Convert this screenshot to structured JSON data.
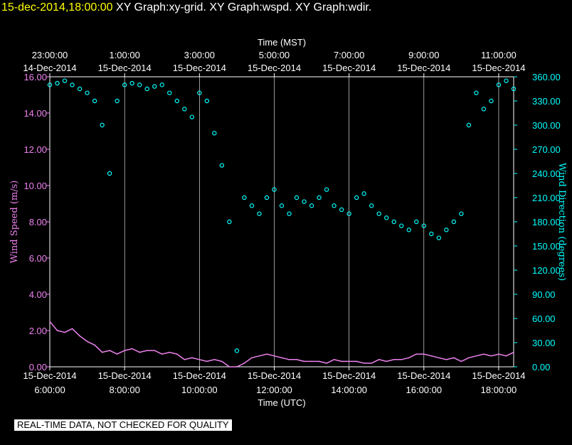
{
  "header": {
    "timestamp": "15-dec-2014,18:00:00",
    "graphs": "XY Graph:xy-grid.  XY Graph:wspd.  XY Graph:wdir."
  },
  "notice": "REAL-TIME DATA, NOT CHECKED FOR QUALITY",
  "colors": {
    "background": "#000000",
    "frame": "#ffffff",
    "grid": "#ffffff",
    "wspd": "#ee82ee",
    "wdir": "#00ffff",
    "header_ts": "#ffff00"
  },
  "chart_data": {
    "type": "scatter",
    "top_axis_title": "Time (MST)",
    "bottom_axis_title": "Time (UTC)",
    "left_axis_title": "Wind Speed (m/s)",
    "right_axis_title": "Wind Direction (degrees)",
    "x_range_utc_hours": [
      6,
      18.4
    ],
    "left_ylim": [
      0,
      16
    ],
    "right_ylim": [
      0,
      360
    ],
    "left_ticks": [
      "0.00",
      "2.00",
      "4.00",
      "6.00",
      "8.00",
      "10.00",
      "12.00",
      "14.00",
      "16.00"
    ],
    "right_ticks": [
      "0.00",
      "30.00",
      "60.00",
      "90.00",
      "120.00",
      "150.00",
      "180.00",
      "210.00",
      "240.00",
      "270.00",
      "300.00",
      "330.00",
      "360.00"
    ],
    "bottom_ticks": [
      {
        "utc_hour": 6,
        "date": "15-Dec-2014",
        "time": "6:00:00"
      },
      {
        "utc_hour": 8,
        "date": "15-Dec-2014",
        "time": "8:00:00"
      },
      {
        "utc_hour": 10,
        "date": "15-Dec-2014",
        "time": "10:00:00"
      },
      {
        "utc_hour": 12,
        "date": "15-Dec-2014",
        "time": "12:00:00"
      },
      {
        "utc_hour": 14,
        "date": "15-Dec-2014",
        "time": "14:00:00"
      },
      {
        "utc_hour": 16,
        "date": "15-Dec-2014",
        "time": "16:00:00"
      },
      {
        "utc_hour": 18,
        "date": "15-Dec-2014",
        "time": "18:00:00"
      }
    ],
    "top_ticks": [
      {
        "utc_hour": 6,
        "date": "14-Dec-2014",
        "time": "23:00:00"
      },
      {
        "utc_hour": 8,
        "date": "15-Dec-2014",
        "time": "1:00:00"
      },
      {
        "utc_hour": 10,
        "date": "15-Dec-2014",
        "time": "3:00:00"
      },
      {
        "utc_hour": 12,
        "date": "15-Dec-2014",
        "time": "5:00:00"
      },
      {
        "utc_hour": 14,
        "date": "15-Dec-2014",
        "time": "7:00:00"
      },
      {
        "utc_hour": 16,
        "date": "15-Dec-2014",
        "time": "9:00:00"
      },
      {
        "utc_hour": 18,
        "date": "15-Dec-2014",
        "time": "11:00:00"
      }
    ],
    "grid_hours": [
      8,
      10,
      12,
      14,
      16,
      18
    ],
    "series": [
      {
        "key": "wspd",
        "style": "line",
        "units": "m/s",
        "x": [
          6.0,
          6.2,
          6.4,
          6.6,
          6.8,
          7.0,
          7.2,
          7.4,
          7.6,
          7.8,
          8.0,
          8.2,
          8.4,
          8.6,
          8.8,
          9.0,
          9.2,
          9.4,
          9.6,
          9.8,
          10.0,
          10.2,
          10.4,
          10.6,
          10.8,
          11.0,
          11.2,
          11.4,
          11.6,
          11.8,
          12.0,
          12.2,
          12.4,
          12.6,
          12.8,
          13.0,
          13.2,
          13.4,
          13.6,
          13.8,
          14.0,
          14.2,
          14.4,
          14.6,
          14.8,
          15.0,
          15.2,
          15.4,
          15.6,
          15.8,
          16.0,
          16.2,
          16.4,
          16.6,
          16.8,
          17.0,
          17.2,
          17.4,
          17.6,
          17.8,
          18.0,
          18.2,
          18.4
        ],
        "y": [
          2.5,
          2.0,
          1.9,
          2.1,
          1.7,
          1.4,
          1.2,
          0.8,
          0.9,
          0.7,
          0.9,
          1.0,
          0.8,
          0.9,
          0.9,
          0.7,
          0.8,
          0.7,
          0.4,
          0.5,
          0.4,
          0.3,
          0.4,
          0.3,
          0.0,
          0.0,
          0.2,
          0.5,
          0.6,
          0.7,
          0.6,
          0.5,
          0.4,
          0.4,
          0.3,
          0.3,
          0.3,
          0.2,
          0.4,
          0.3,
          0.3,
          0.3,
          0.2,
          0.2,
          0.4,
          0.3,
          0.4,
          0.4,
          0.5,
          0.7,
          0.7,
          0.6,
          0.5,
          0.4,
          0.5,
          0.3,
          0.5,
          0.6,
          0.7,
          0.6,
          0.7,
          0.6,
          0.8
        ]
      },
      {
        "key": "wdir",
        "style": "circles",
        "units": "degrees",
        "x": [
          6.0,
          6.2,
          6.4,
          6.6,
          6.8,
          7.0,
          7.2,
          7.4,
          7.6,
          7.8,
          8.0,
          8.2,
          8.4,
          8.6,
          8.8,
          9.0,
          9.2,
          9.4,
          9.6,
          9.8,
          10.0,
          10.2,
          10.4,
          10.6,
          10.8,
          11.0,
          11.2,
          11.4,
          11.6,
          11.8,
          12.0,
          12.2,
          12.4,
          12.6,
          12.8,
          13.0,
          13.2,
          13.4,
          13.6,
          13.8,
          14.0,
          14.2,
          14.4,
          14.6,
          14.8,
          15.0,
          15.2,
          15.4,
          15.6,
          15.8,
          16.0,
          16.2,
          16.4,
          16.6,
          16.8,
          17.0,
          17.2,
          17.4,
          17.6,
          17.8,
          18.0,
          18.2,
          18.4
        ],
        "y": [
          350,
          352,
          355,
          350,
          345,
          340,
          330,
          300,
          240,
          330,
          350,
          352,
          350,
          345,
          348,
          350,
          340,
          330,
          320,
          310,
          340,
          330,
          290,
          250,
          180,
          20,
          210,
          200,
          190,
          210,
          220,
          200,
          190,
          210,
          205,
          200,
          210,
          220,
          200,
          195,
          190,
          210,
          215,
          200,
          190,
          185,
          180,
          175,
          170,
          180,
          175,
          165,
          160,
          170,
          180,
          190,
          300,
          340,
          320,
          330,
          350,
          355,
          345
        ]
      }
    ]
  }
}
